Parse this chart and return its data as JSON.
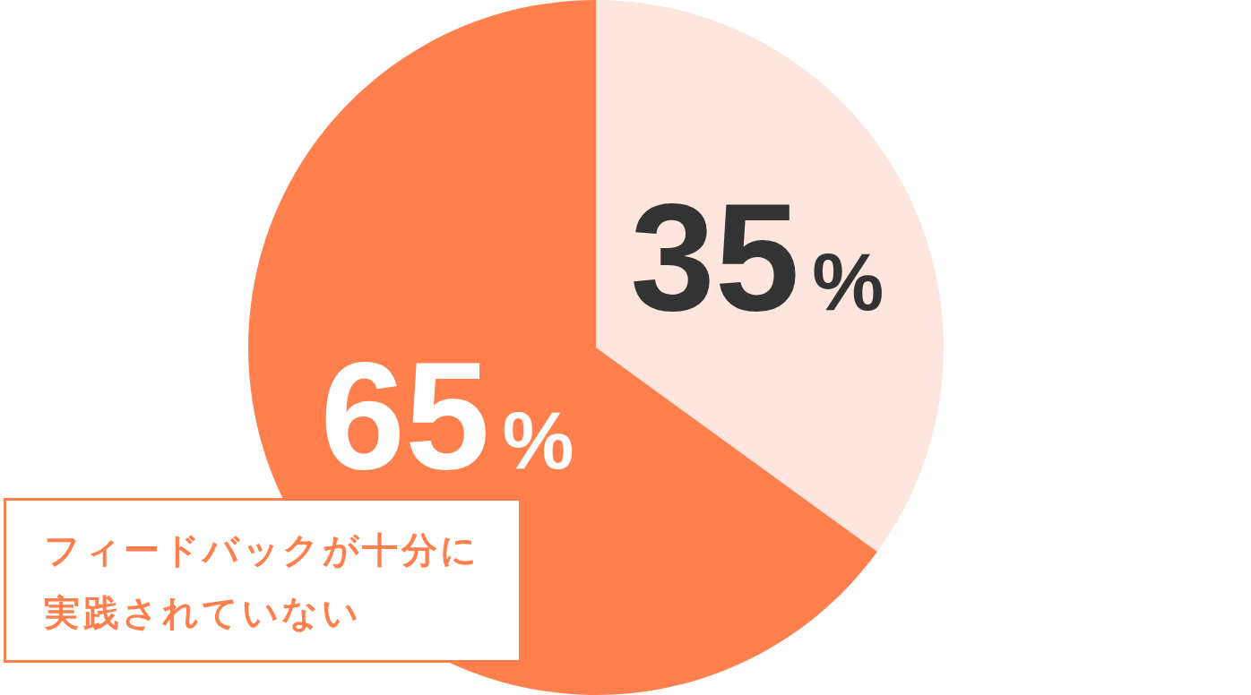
{
  "chart_data": {
    "type": "pie",
    "categories": [
      null,
      "フィードバックが十分に実践されていない"
    ],
    "values": [
      35,
      65
    ],
    "colors": [
      "#fee5dd",
      "#ff7f4d"
    ],
    "value_labels": [
      "35%",
      "65%"
    ]
  }
}
